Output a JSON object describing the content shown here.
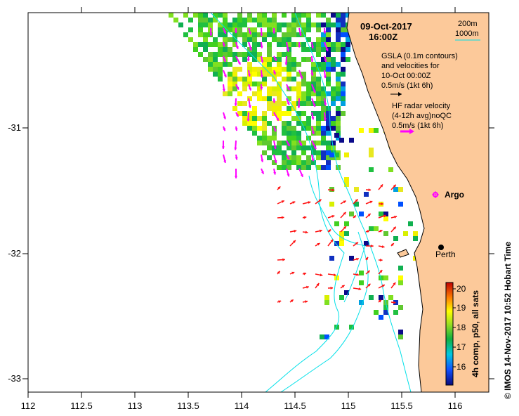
{
  "title": {
    "date": "09-Oct-2017",
    "time": "16:00Z"
  },
  "depth_legend": {
    "contour_200m": "200m",
    "contour_1000m": "1000m"
  },
  "gsla_legend": {
    "line1": "GSLA (0.1m contours)",
    "line2": "and velocities for",
    "line3": "10-Oct 00:00Z",
    "line4": "0.5m/s (1kt 6h)"
  },
  "hf_legend": {
    "line1": "HF radar velocity",
    "line2": "(4-12h avg)noQC",
    "line3": "0.5m/s (1kt 6h)"
  },
  "places": {
    "argo": "Argo",
    "perth": "Perth"
  },
  "colorbar": {
    "label": "4h comp, p50, all sats",
    "ticks": [
      "20",
      "19",
      "18",
      "17",
      "16"
    ]
  },
  "credit": "©  IMOS 14-Nov-2017 10:52 Hobart Time",
  "axes": {
    "x_ticks": [
      "112",
      "112.5",
      "113",
      "113.5",
      "114",
      "114.5",
      "115",
      "115.5",
      "116"
    ],
    "y_ticks": [
      "-31",
      "-32",
      "-33"
    ]
  },
  "colors": {
    "land": "#fcc99a",
    "contour": "#00e0e8",
    "hf_arrow": "#ff00ff",
    "vel_arrow": "#ff1010"
  }
}
